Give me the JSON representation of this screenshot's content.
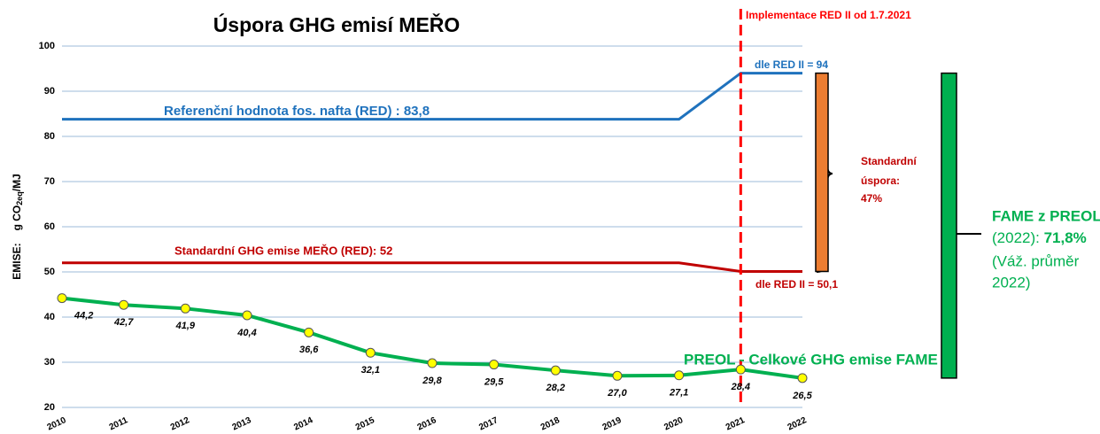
{
  "chart_data": {
    "type": "line",
    "title": "Úspora GHG emisí  MEŘO",
    "ylabel": {
      "prefix": "EMISE:",
      "unit": "g CO",
      "sub": "2eq",
      "suffix": "/MJ"
    },
    "x": [
      2010,
      2011,
      2012,
      2013,
      2014,
      2015,
      2016,
      2017,
      2018,
      2019,
      2020,
      2021,
      2022
    ],
    "xlim": [
      2010,
      2022
    ],
    "xticks": [
      2010,
      2011,
      2012,
      2013,
      2014,
      2015,
      2016,
      2017,
      2018,
      2019,
      2020,
      2021,
      2022
    ],
    "ylim": [
      20,
      100
    ],
    "yticks": [
      20,
      30,
      40,
      50,
      60,
      70,
      80,
      90,
      100
    ],
    "grid": true,
    "vline": 2021,
    "series": [
      {
        "name": "Referenční hodnota fos. nafta (RED) : 83,8",
        "color": "#1f72bd",
        "markers": false,
        "values": [
          83.8,
          83.8,
          83.8,
          83.8,
          83.8,
          83.8,
          83.8,
          83.8,
          83.8,
          83.8,
          83.8,
          94,
          94
        ]
      },
      {
        "name": "Standardní GHG emise MEŘO (RED): 52",
        "color": "#c00000",
        "markers": false,
        "values": [
          52,
          52,
          52,
          52,
          52,
          52,
          52,
          52,
          52,
          52,
          52,
          50.1,
          50.1
        ]
      },
      {
        "name": "PREOL - Celkové GHG emise FAME",
        "color": "#00b050",
        "markers": true,
        "values": [
          44.2,
          42.7,
          41.9,
          40.4,
          36.6,
          32.1,
          29.8,
          29.5,
          28.2,
          27.0,
          27.1,
          28.4,
          26.5
        ],
        "value_labels": [
          "44,2",
          "42,7",
          "41,9",
          "40,4",
          "36,6",
          "32,1",
          "29,8",
          "29,5",
          "28,2",
          "27,0",
          "27,1",
          "28,4",
          "26,5"
        ]
      }
    ],
    "annotations": {
      "vline_label": "Implementace RED II od 1.7.2021",
      "ref_new": "dle RED II = 94",
      "std_new": "dle RED II = 50,1",
      "saving": [
        "Standardní",
        "úspora:",
        "47%"
      ],
      "fame": {
        "line1": "FAME z PREOL",
        "line2a": "(2022): ",
        "line2b": "71,8%",
        "line3": "(Váž. průměr",
        "line4": "2022)"
      }
    }
  }
}
